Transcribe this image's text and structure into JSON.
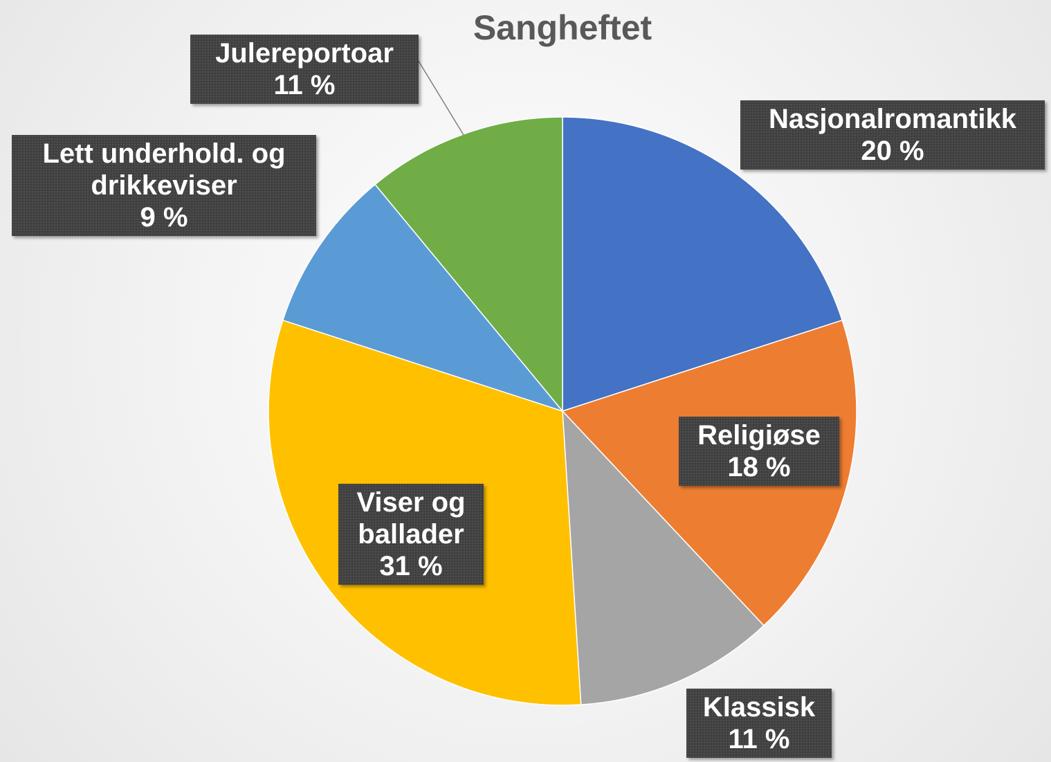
{
  "chart_data": {
    "type": "pie",
    "title": "Sangheftet",
    "categories": [
      "Nasjonalromantikk",
      "Religiøse",
      "Klassisk",
      "Viser og ballader",
      "Lett underhold. og drikkeviser",
      "Julereportoar"
    ],
    "values": [
      20,
      18,
      11,
      31,
      9,
      11
    ],
    "value_labels": [
      "20 %",
      "18 %",
      "11 %",
      "31 %",
      "9 %",
      "11 %"
    ],
    "colors": [
      "#4472c4",
      "#ed7d31",
      "#a5a5a5",
      "#ffc000",
      "#5b9bd5",
      "#70ad47"
    ]
  }
}
